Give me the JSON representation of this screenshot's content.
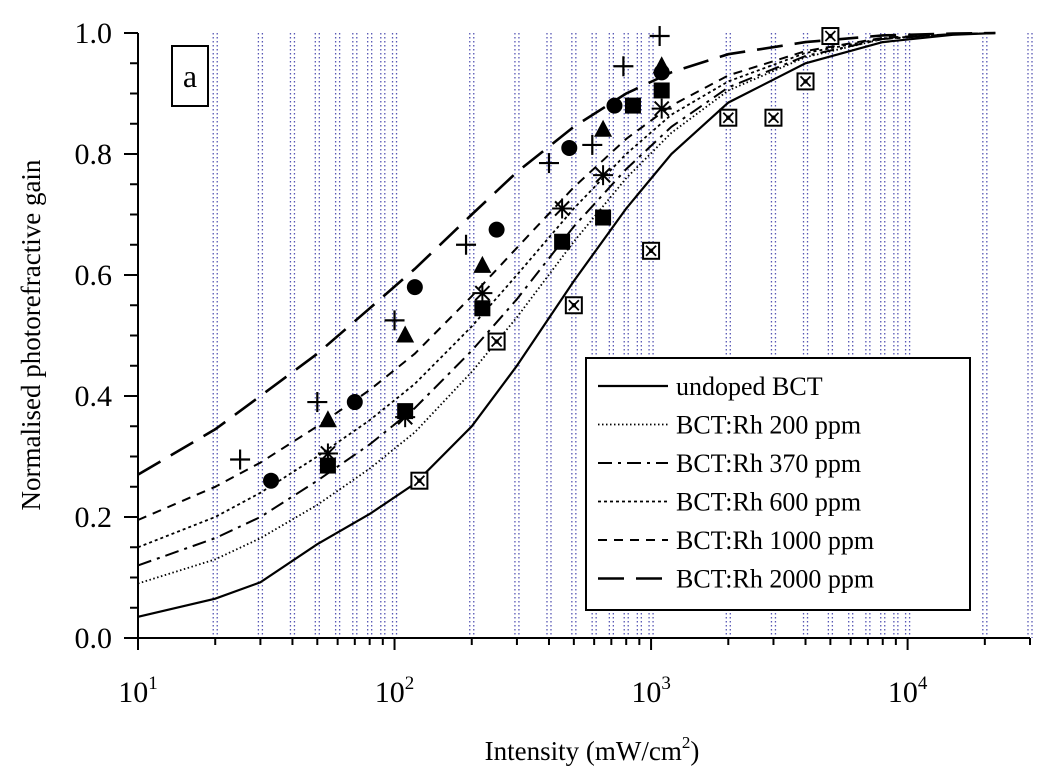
{
  "chart_data": {
    "type": "scatter",
    "title": "",
    "panel_label": "a",
    "xlabel": "Intensity (mW/cm",
    "xlabel_sup": "2",
    "xlabel_close": ")",
    "ylabel": "Normalised photorefractive gain",
    "xscale": "log",
    "xlim": [
      10,
      30000
    ],
    "ylim": [
      0.0,
      1.0
    ],
    "x_ticks": [
      {
        "value": 10,
        "base": "10",
        "exp": "1"
      },
      {
        "value": 100,
        "base": "10",
        "exp": "2"
      },
      {
        "value": 1000,
        "base": "10",
        "exp": "3"
      },
      {
        "value": 10000,
        "base": "10",
        "exp": "4"
      }
    ],
    "y_ticks": [
      "0.0",
      "0.2",
      "0.4",
      "0.6",
      "0.8",
      "1.0"
    ],
    "grid": "vertical dotted lines at log minor ticks",
    "legend_position": "lower-right",
    "colors": {
      "grid": "#3a3aa8",
      "ink": "#000000"
    },
    "series": [
      {
        "name": "undoped BCT",
        "line": "solid",
        "marker": "boxed-x",
        "x": [
          125,
          250,
          500,
          1000,
          2000,
          3000,
          4000,
          5000
        ],
        "y": [
          0.26,
          0.49,
          0.55,
          0.64,
          0.86,
          0.86,
          0.92,
          0.995
        ]
      },
      {
        "name": "BCT:Rh 200 ppm",
        "line": "dotted",
        "marker": "square",
        "x": [
          55,
          110,
          220,
          450,
          650,
          850,
          1100
        ],
        "y": [
          0.285,
          0.375,
          0.545,
          0.655,
          0.695,
          0.88,
          0.905
        ]
      },
      {
        "name": "BCT:Rh 370 ppm",
        "line": "dash-dot",
        "marker": "asterisk",
        "x": [
          55,
          110,
          220,
          450,
          650,
          1100
        ],
        "y": [
          0.305,
          0.365,
          0.57,
          0.71,
          0.765,
          0.875
        ]
      },
      {
        "name": "BCT:Rh 600 ppm",
        "line": "fine-dot",
        "marker": "circle",
        "x": [
          33,
          70,
          120,
          250,
          480,
          720,
          1100
        ],
        "y": [
          0.26,
          0.39,
          0.58,
          0.675,
          0.81,
          0.88,
          0.935
        ]
      },
      {
        "name": "BCT:Rh 1000 ppm",
        "line": "short-dash",
        "marker": "triangle",
        "x": [
          55,
          110,
          220,
          650,
          1100
        ],
        "y": [
          0.36,
          0.5,
          0.615,
          0.84,
          0.945
        ]
      },
      {
        "name": "BCT:Rh 2000 ppm",
        "line": "long-dash",
        "marker": "plus",
        "x": [
          25,
          50,
          100,
          190,
          400,
          590,
          780,
          1080
        ],
        "y": [
          0.295,
          0.39,
          0.525,
          0.65,
          0.785,
          0.815,
          0.945,
          0.995
        ]
      }
    ],
    "fit_curves": [
      {
        "series": "undoped BCT",
        "x": [
          10,
          20,
          30,
          50,
          80,
          120,
          200,
          300,
          500,
          800,
          1200,
          2000,
          4000,
          8000,
          15000,
          22000
        ],
        "y": [
          0.035,
          0.065,
          0.092,
          0.155,
          0.205,
          0.255,
          0.35,
          0.45,
          0.59,
          0.71,
          0.8,
          0.885,
          0.95,
          0.985,
          0.997,
          1.0
        ]
      },
      {
        "series": "BCT:Rh 200 ppm",
        "x": [
          10,
          20,
          30,
          50,
          80,
          120,
          200,
          300,
          500,
          800,
          1200,
          2000,
          4000,
          8000,
          15000,
          22000
        ],
        "y": [
          0.09,
          0.13,
          0.165,
          0.22,
          0.28,
          0.34,
          0.44,
          0.53,
          0.655,
          0.76,
          0.835,
          0.905,
          0.96,
          0.99,
          0.998,
          1.0
        ]
      },
      {
        "series": "BCT:Rh 370 ppm",
        "x": [
          10,
          20,
          30,
          50,
          80,
          120,
          200,
          300,
          500,
          800,
          1200,
          2000,
          4000,
          8000,
          15000,
          22000
        ],
        "y": [
          0.12,
          0.165,
          0.2,
          0.26,
          0.32,
          0.38,
          0.475,
          0.56,
          0.68,
          0.775,
          0.845,
          0.91,
          0.962,
          0.99,
          0.998,
          1.0
        ]
      },
      {
        "series": "BCT:Rh 600 ppm",
        "x": [
          10,
          20,
          30,
          50,
          80,
          120,
          200,
          300,
          500,
          800,
          1200,
          2000,
          4000,
          8000,
          15000,
          22000
        ],
        "y": [
          0.15,
          0.2,
          0.24,
          0.3,
          0.36,
          0.42,
          0.515,
          0.6,
          0.71,
          0.8,
          0.865,
          0.92,
          0.967,
          0.991,
          0.998,
          1.0
        ]
      },
      {
        "series": "BCT:Rh 1000 ppm",
        "x": [
          10,
          20,
          30,
          50,
          80,
          120,
          200,
          300,
          500,
          800,
          1200,
          2000,
          4000,
          8000,
          15000,
          22000
        ],
        "y": [
          0.195,
          0.25,
          0.29,
          0.35,
          0.41,
          0.47,
          0.565,
          0.645,
          0.745,
          0.825,
          0.88,
          0.93,
          0.97,
          0.992,
          0.998,
          1.0
        ]
      },
      {
        "series": "BCT:Rh 2000 ppm",
        "x": [
          10,
          20,
          30,
          50,
          80,
          120,
          200,
          300,
          500,
          800,
          1200,
          2000,
          4000,
          8000,
          15000,
          22000
        ],
        "y": [
          0.27,
          0.345,
          0.4,
          0.47,
          0.545,
          0.61,
          0.7,
          0.77,
          0.845,
          0.9,
          0.935,
          0.965,
          0.985,
          0.996,
          0.999,
          1.0
        ]
      }
    ]
  }
}
